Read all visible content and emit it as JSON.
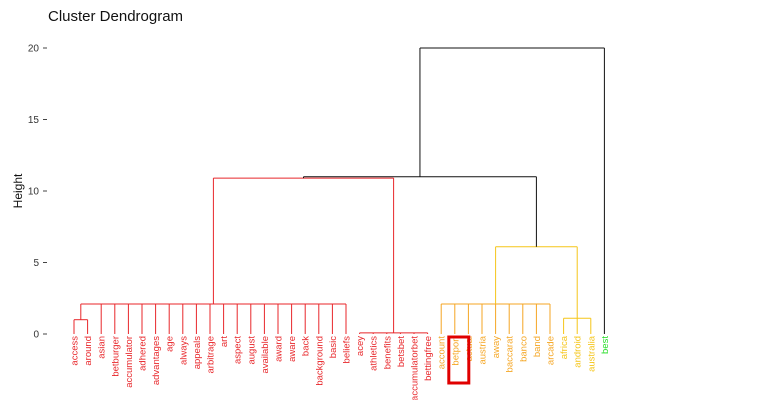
{
  "chart_data": {
    "type": "dendrogram",
    "title": "Cluster Dendrogram",
    "ylabel": "Height",
    "xlabel": "",
    "ylim": [
      0,
      20
    ],
    "yticks": [
      0,
      5,
      10,
      15,
      20
    ],
    "grid": false,
    "leaves": [
      {
        "label": "access",
        "color": "#e8262a"
      },
      {
        "label": "around",
        "color": "#e8262a"
      },
      {
        "label": "asian",
        "color": "#e8262a"
      },
      {
        "label": "betburger",
        "color": "#e8262a"
      },
      {
        "label": "accumulator",
        "color": "#e8262a"
      },
      {
        "label": "adhered",
        "color": "#e8262a"
      },
      {
        "label": "advantages",
        "color": "#e8262a"
      },
      {
        "label": "age",
        "color": "#e8262a"
      },
      {
        "label": "always",
        "color": "#e8262a"
      },
      {
        "label": "appeals",
        "color": "#e8262a"
      },
      {
        "label": "arbitrage",
        "color": "#e8262a"
      },
      {
        "label": "art",
        "color": "#e8262a"
      },
      {
        "label": "aspect",
        "color": "#e8262a"
      },
      {
        "label": "august",
        "color": "#e8262a"
      },
      {
        "label": "available",
        "color": "#e8262a"
      },
      {
        "label": "award",
        "color": "#e8262a"
      },
      {
        "label": "aware",
        "color": "#e8262a"
      },
      {
        "label": "back",
        "color": "#e8262a"
      },
      {
        "label": "background",
        "color": "#e8262a"
      },
      {
        "label": "basic",
        "color": "#e8262a"
      },
      {
        "label": "beliefs",
        "color": "#e8262a"
      },
      {
        "label": "acey",
        "color": "#e8262a"
      },
      {
        "label": "athletics",
        "color": "#e8262a"
      },
      {
        "label": "benefits",
        "color": "#e8262a"
      },
      {
        "label": "betsbet",
        "color": "#e8262a"
      },
      {
        "label": "accumulatorbet",
        "color": "#e8262a"
      },
      {
        "label": "bettingfree",
        "color": "#e8262a"
      },
      {
        "label": "account",
        "color": "#f5a623"
      },
      {
        "label": "betport",
        "color": "#f5a623"
      },
      {
        "label": "actual",
        "color": "#f5a623"
      },
      {
        "label": "austria",
        "color": "#f5a623"
      },
      {
        "label": "away",
        "color": "#f5a623"
      },
      {
        "label": "baccarat",
        "color": "#f5a623"
      },
      {
        "label": "banco",
        "color": "#f5a623"
      },
      {
        "label": "band",
        "color": "#f5a623"
      },
      {
        "label": "arcade",
        "color": "#f5a623"
      },
      {
        "label": "africa",
        "color": "#f5c518"
      },
      {
        "label": "android",
        "color": "#f5c518"
      },
      {
        "label": "australia",
        "color": "#f5c518"
      },
      {
        "label": "best",
        "color": "#22dd22"
      }
    ],
    "merges": [
      {
        "left": [
          0,
          1,
          2,
          3,
          4,
          5
        ],
        "height": 1.0,
        "color": "#e8262a"
      },
      {
        "left": [
          0,
          20
        ],
        "height": 2.1,
        "color": "#e8262a"
      },
      {
        "left": [
          21,
          26
        ],
        "height": 0.08,
        "color": "#e8262a"
      },
      {
        "left": [
          0,
          26
        ],
        "height": 10.9,
        "color": "#e8262a"
      },
      {
        "left": [
          27,
          35
        ],
        "height": 2.1,
        "color": "#f5a623"
      },
      {
        "left": [
          36,
          38
        ],
        "height": 1.1,
        "color": "#f5c518"
      },
      {
        "left": [
          27,
          38
        ],
        "height": 6.1,
        "color": "#f5c518"
      },
      {
        "left": [
          0,
          38
        ],
        "height": 11.0,
        "color": "#111111"
      },
      {
        "left": [
          0,
          39
        ],
        "height": 20.0,
        "color": "#111111"
      }
    ],
    "highlight": {
      "label": "betport",
      "color": "#e00000"
    }
  }
}
